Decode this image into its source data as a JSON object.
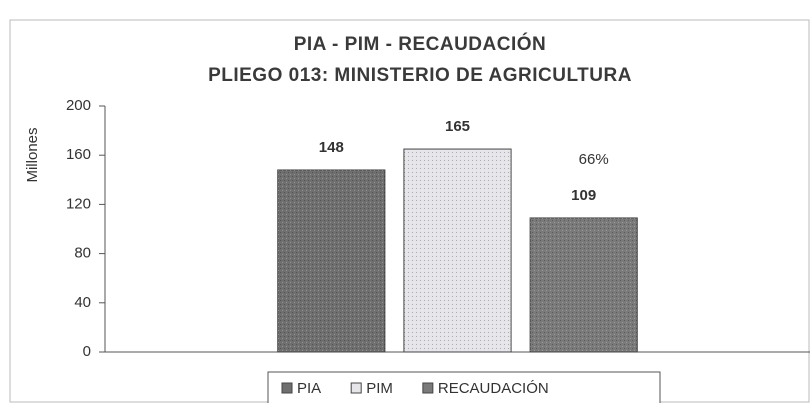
{
  "chart_data": {
    "type": "bar",
    "title": [
      "PIA - PIM - RECAUDACIÓN",
      "PLIEGO 013: MINISTERIO DE AGRICULTURA"
    ],
    "y_label": "Millones",
    "categories": [
      null
    ],
    "series": [
      {
        "name": "PIA",
        "color": "#6f6f6f",
        "values": [
          148
        ]
      },
      {
        "name": "PIM",
        "color": "#e6e6ea",
        "values": [
          165
        ]
      },
      {
        "name": "RECAUDACIÓN",
        "color": "#7a7a7a",
        "values": [
          109
        ]
      }
    ],
    "annotation": "66%",
    "ylim": [
      0,
      200
    ],
    "yticks": [
      0,
      40,
      80,
      120,
      160,
      200
    ],
    "grid": false,
    "legend": "bottom"
  }
}
